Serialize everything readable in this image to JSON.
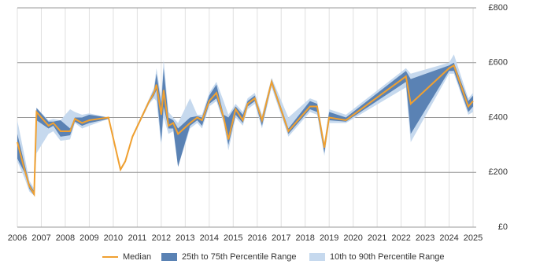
{
  "chart_data": {
    "type": "line",
    "x": [
      2006.0,
      2006.3,
      2006.5,
      2006.7,
      2006.8,
      2007.3,
      2007.5,
      2007.8,
      2008.2,
      2008.4,
      2008.7,
      2009.0,
      2009.8,
      2010.3,
      2010.5,
      2010.8,
      2011.5,
      2011.7,
      2011.8,
      2012.0,
      2012.1,
      2012.3,
      2012.5,
      2012.7,
      2013.2,
      2013.5,
      2013.7,
      2014.0,
      2014.3,
      2014.6,
      2014.8,
      2015.1,
      2015.4,
      2015.6,
      2015.9,
      2016.2,
      2016.6,
      2017.3,
      2018.2,
      2018.5,
      2018.8,
      2019.0,
      2019.7,
      2022.2,
      2022.4,
      2024.0,
      2024.2,
      2024.8,
      2025.0
    ],
    "series": [
      {
        "name": "Median",
        "color": "#f0a030",
        "values": [
          310,
          210,
          150,
          120,
          420,
          370,
          380,
          350,
          350,
          395,
          380,
          390,
          400,
          210,
          240,
          330,
          460,
          490,
          520,
          410,
          500,
          370,
          380,
          340,
          380,
          400,
          390,
          460,
          490,
          400,
          320,
          430,
          390,
          450,
          470,
          390,
          530,
          350,
          440,
          440,
          290,
          400,
          390,
          550,
          450,
          580,
          590,
          440,
          460
        ]
      }
    ],
    "bands": [
      {
        "name": "10th to 90th Percentile Range",
        "color": "#c6d9ee",
        "lower": [
          240,
          180,
          130,
          115,
          270,
          340,
          350,
          315,
          320,
          380,
          360,
          370,
          395,
          205,
          235,
          325,
          450,
          470,
          460,
          300,
          400,
          340,
          350,
          220,
          360,
          380,
          360,
          440,
          460,
          380,
          280,
          400,
          370,
          430,
          450,
          360,
          510,
          330,
          420,
          410,
          260,
          380,
          380,
          510,
          310,
          560,
          560,
          410,
          420
        ],
        "upper": [
          390,
          260,
          170,
          140,
          435,
          390,
          395,
          390,
          430,
          420,
          410,
          415,
          400,
          215,
          245,
          335,
          470,
          510,
          580,
          470,
          610,
          420,
          400,
          380,
          470,
          410,
          410,
          490,
          530,
          460,
          410,
          450,
          420,
          470,
          490,
          410,
          545,
          400,
          470,
          460,
          310,
          430,
          410,
          580,
          560,
          600,
          630,
          470,
          490
        ]
      },
      {
        "name": "25th to 75th Percentile Range",
        "color": "#5a82b4",
        "lower": [
          250,
          200,
          140,
          115,
          390,
          360,
          370,
          330,
          335,
          385,
          370,
          380,
          395,
          205,
          235,
          325,
          455,
          480,
          500,
          310,
          440,
          360,
          360,
          220,
          370,
          390,
          370,
          450,
          470,
          390,
          300,
          410,
          380,
          440,
          460,
          370,
          520,
          340,
          430,
          420,
          270,
          390,
          385,
          530,
          340,
          570,
          570,
          420,
          440
        ],
        "upper": [
          340,
          230,
          160,
          130,
          435,
          385,
          385,
          390,
          360,
          400,
          400,
          410,
          400,
          215,
          245,
          335,
          465,
          500,
          560,
          450,
          580,
          400,
          390,
          360,
          400,
          405,
          400,
          480,
          520,
          410,
          400,
          440,
          410,
          460,
          480,
          400,
          540,
          360,
          460,
          450,
          300,
          420,
          400,
          570,
          540,
          590,
          600,
          460,
          480
        ]
      }
    ],
    "xlim": [
      2006,
      2025.13
    ],
    "xticks": [
      2006,
      2007,
      2008,
      2009,
      2010,
      2011,
      2012,
      2013,
      2014,
      2015,
      2016,
      2017,
      2018,
      2019,
      2020,
      2021,
      2022,
      2023,
      2024,
      2025
    ],
    "ylim": [
      0,
      800
    ],
    "yticks": [
      {
        "value": 0,
        "label": "£0"
      },
      {
        "value": 200,
        "label": "£200"
      },
      {
        "value": 400,
        "label": "£400"
      },
      {
        "value": 600,
        "label": "£600"
      },
      {
        "value": 800,
        "label": "£800"
      }
    ],
    "grid": true
  }
}
